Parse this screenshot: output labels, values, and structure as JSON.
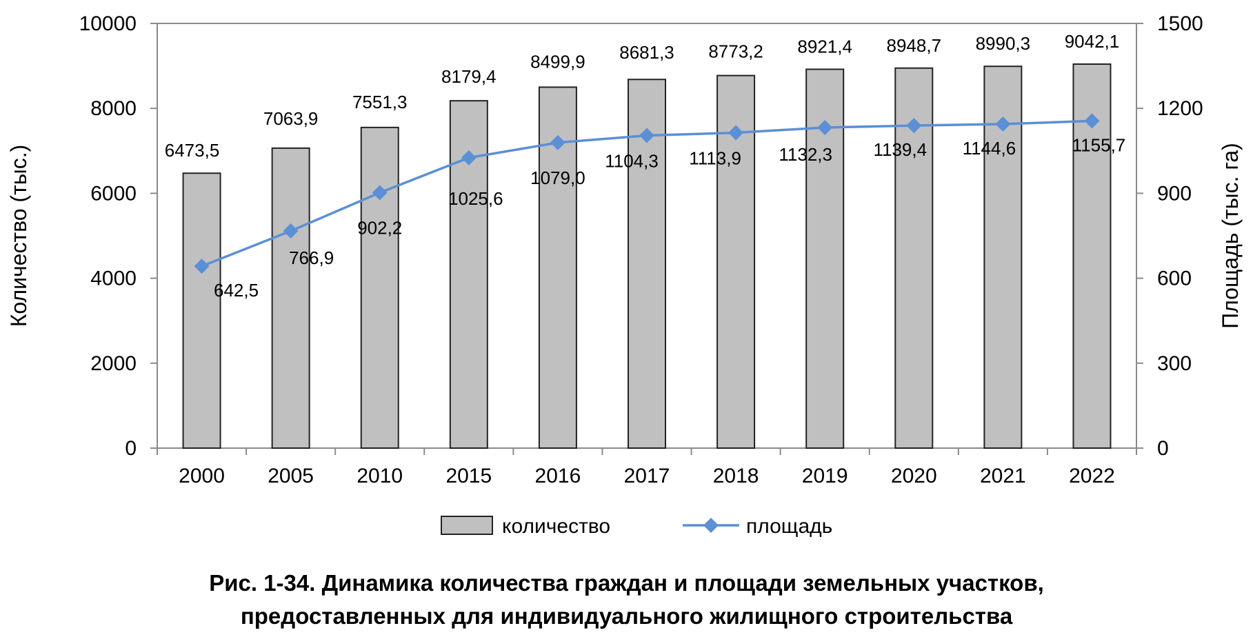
{
  "chart_data": {
    "type": "bar",
    "categories": [
      "2000",
      "2005",
      "2010",
      "2015",
      "2016",
      "2017",
      "2018",
      "2019",
      "2020",
      "2021",
      "2022"
    ],
    "series": [
      {
        "name": "количество",
        "type": "bar",
        "axis": "left",
        "values": [
          6473.5,
          7063.9,
          7551.3,
          8179.4,
          8499.9,
          8681.3,
          8773.2,
          8921.4,
          8948.7,
          8990.3,
          9042.1
        ],
        "labels": [
          "6473,5",
          "7063,9",
          "7551,3",
          "8179,4",
          "8499,9",
          "8681,3",
          "8773,2",
          "8921,4",
          "8948,7",
          "8990,3",
          "9042,1"
        ],
        "color": "#c0c0c0"
      },
      {
        "name": "площадь",
        "type": "line",
        "axis": "right",
        "marker": "diamond",
        "values": [
          642.5,
          766.9,
          902.2,
          1025.6,
          1079.0,
          1104.3,
          1113.9,
          1132.3,
          1139.4,
          1144.6,
          1155.7
        ],
        "labels": [
          "642,5",
          "766,9",
          "902,2",
          "1025,6",
          "1079,0",
          "1104,3",
          "1113,9",
          "1132,3",
          "1139,4",
          "1144,6",
          "1155,7"
        ],
        "color": "#5b8fd6"
      }
    ],
    "ylabel": "Количество (тыс.)",
    "y2label": "Площадь (тыс. га)",
    "ylim": [
      0,
      10000
    ],
    "y2lim": [
      0,
      1500
    ],
    "yticks": [
      "0",
      "2000",
      "4000",
      "6000",
      "8000",
      "10000"
    ],
    "y2ticks": [
      "0",
      "300",
      "600",
      "900",
      "1200",
      "1500"
    ],
    "grid": false,
    "legend": "bottom"
  },
  "caption": {
    "line1": "Рис. 1-34. Динамика количества граждан и площади земельных участков,",
    "line2": "предоставленных для индивидуального жилищного строительства"
  }
}
